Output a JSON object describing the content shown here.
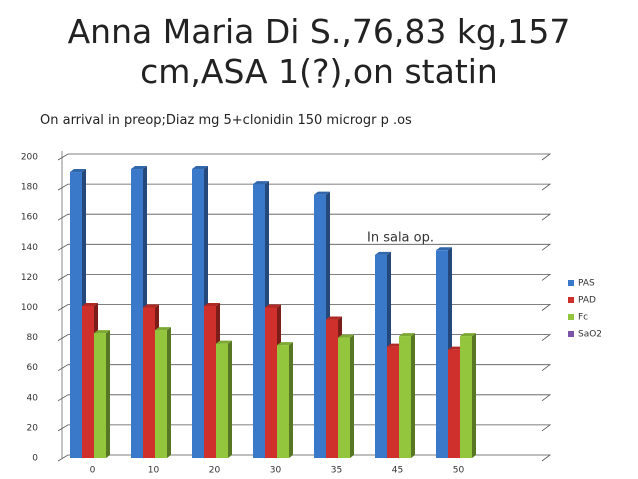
{
  "chart_data": {
    "type": "bar3d",
    "title": "Anna Maria Di S.,76,83 kg,157 cm,ASA 1(?),on statin",
    "subtitle": "On arrival in preop;Diaz mg 5+clonidin 150 microgr p .os",
    "annotation": "In sala op.",
    "categories": [
      "0",
      "10",
      "20",
      "30",
      "35",
      "45",
      "50",
      null
    ],
    "series": [
      {
        "name": "PAS",
        "color": "#3a78c9",
        "values": [
          190,
          192,
          192,
          182,
          175,
          135,
          138,
          null
        ]
      },
      {
        "name": "PAD",
        "color": "#d0302c",
        "values": [
          101,
          100,
          101,
          100,
          92,
          74,
          72,
          null
        ]
      },
      {
        "name": "Fc",
        "color": "#93c63c",
        "values": [
          83,
          85,
          76,
          75,
          80,
          81,
          81,
          null
        ]
      },
      {
        "name": "SaO2",
        "color": "#7a55a8",
        "values": [
          null,
          null,
          null,
          null,
          null,
          null,
          null,
          null
        ]
      }
    ],
    "ylim": [
      0,
      200
    ],
    "yticks": [
      0,
      20,
      40,
      60,
      80,
      100,
      120,
      140,
      160,
      180,
      200
    ],
    "grid": true,
    "legend": "right"
  }
}
